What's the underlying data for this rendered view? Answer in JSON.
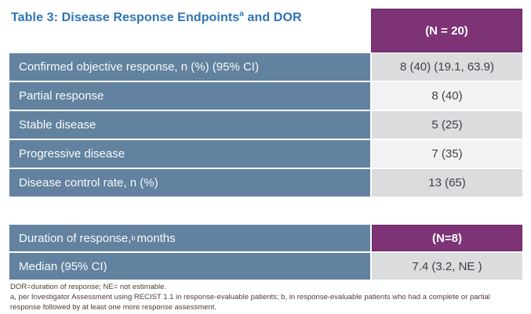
{
  "title": {
    "prefix": "Table 3: Disease Response Endpoints",
    "superscript": "a",
    "suffix": " and DOR"
  },
  "colors": {
    "title_blue": "#2E75B6",
    "header_purple": "#7e3376",
    "row_blue": "#62829f",
    "value_band_dark": "#dbdcde",
    "value_band_light": "#f1f2f3",
    "footnote_brown": "#4e3b33"
  },
  "table1": {
    "header_value": "(N = 20)",
    "rows": [
      {
        "label": "Confirmed objective response, n (%) (95% CI)",
        "value": "8 (40) (19.1, 63.9)"
      },
      {
        "label": "Partial response",
        "value": "8 (40)"
      },
      {
        "label": "Stable disease",
        "value": "5 (25)"
      },
      {
        "label": "Progressive disease",
        "value": "7 (35)"
      },
      {
        "label": "Disease control rate, n (%)",
        "value": "13 (65)"
      }
    ]
  },
  "table2": {
    "header_label_prefix": "Duration of response,",
    "header_label_superscript": "b",
    "header_label_suffix": " months",
    "header_value": "(N=8)",
    "rows": [
      {
        "label": "Median (95% CI)",
        "value": "7.4 (3.2, NE )"
      }
    ]
  },
  "footnotes": [
    "DOR=duration of response; NE= not estimable.",
    "a, per Investigator Assessment using RECIST 1.1 in response-evaluable patients; b, in response-evaluable patients who had a complete or partial response followed by at least one more response assessment."
  ]
}
